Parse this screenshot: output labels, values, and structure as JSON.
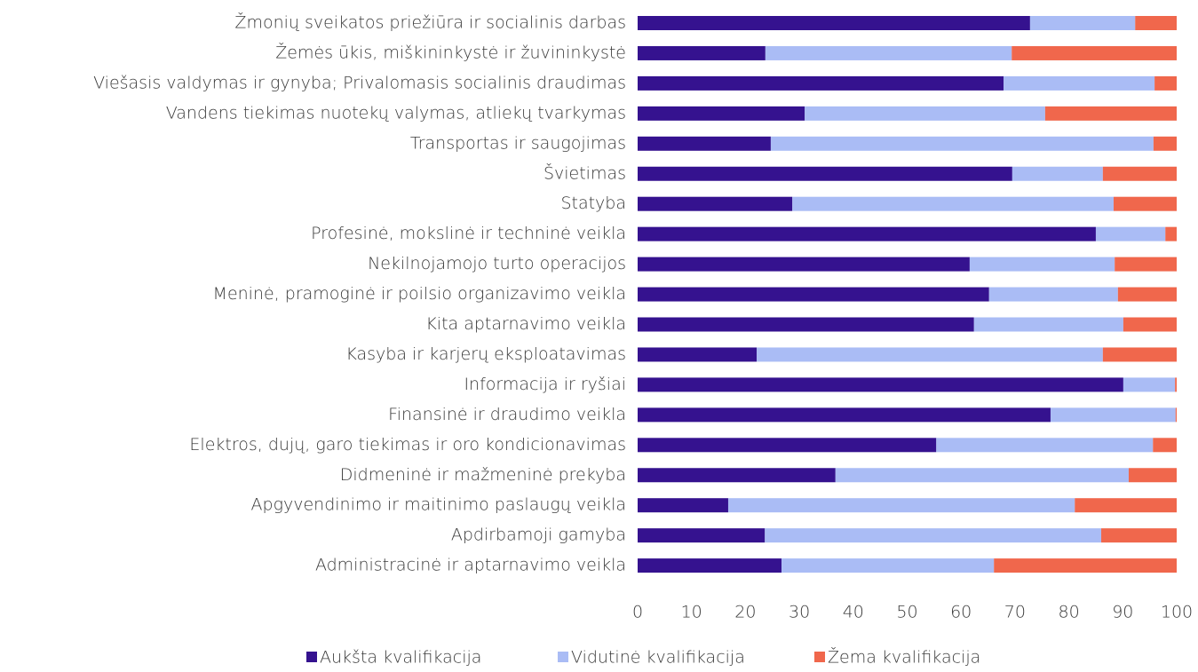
{
  "chart_data": {
    "type": "stacked-barh",
    "categories": [
      "Žmonių sveikatos priežiūra ir socialinis darbas",
      "Žemės ūkis, miškininkystė ir žuvininkystė",
      "Viešasis valdymas ir gynyba; Privalomasis socialinis draudimas",
      "Vandens tiekimas nuotekų valymas, atliekų tvarkymas",
      "Transportas ir saugojimas",
      "Švietimas",
      "Statyba",
      "Profesinė, mokslinė ir techninė veikla",
      "Nekilnojamojo turto operacijos",
      "Meninė, pramoginė ir poilsio organizavimo veikla",
      "Kita aptarnavimo veikla",
      "Kasyba ir karjerų eksploatavimas",
      "Informacija ir ryšiai",
      "Finansinė ir draudimo veikla",
      "Elektros, dujų, garo tiekimas ir oro kondicionavimas",
      "Didmeninė ir mažmeninė prekyba",
      "Apgyvendinimo ir maitinimo paslaugų veikla",
      "Apdirbamoji gamyba",
      "Administracinė ir aptarnavimo veikla"
    ],
    "series": [
      {
        "name": "Aukšta kvalifikacija",
        "color": "#35128f",
        "values": [
          72.8,
          23.7,
          67.9,
          31.0,
          24.7,
          69.5,
          28.7,
          85.0,
          61.6,
          65.2,
          62.4,
          22.1,
          90.1,
          76.6,
          55.4,
          36.7,
          16.8,
          23.6,
          26.7
        ]
      },
      {
        "name": "Vidutinė kvalifikacija",
        "color": "#aabcf5",
        "values": [
          19.5,
          45.7,
          28.0,
          44.6,
          71.0,
          16.8,
          59.6,
          12.9,
          26.9,
          23.9,
          27.7,
          64.2,
          9.6,
          23.2,
          40.2,
          54.4,
          64.3,
          62.4,
          39.4
        ]
      },
      {
        "name": "Žema kvalifikacija",
        "color": "#f0674c",
        "values": [
          7.7,
          30.6,
          4.1,
          24.4,
          4.3,
          13.7,
          11.7,
          2.1,
          11.5,
          10.9,
          9.9,
          13.7,
          0.3,
          0.2,
          4.4,
          8.9,
          18.9,
          14.0,
          33.9
        ]
      }
    ],
    "xlim": [
      0,
      100
    ],
    "xticks": [
      0,
      10,
      20,
      30,
      40,
      50,
      60,
      70,
      80,
      90,
      100
    ],
    "legend": "bottom"
  }
}
